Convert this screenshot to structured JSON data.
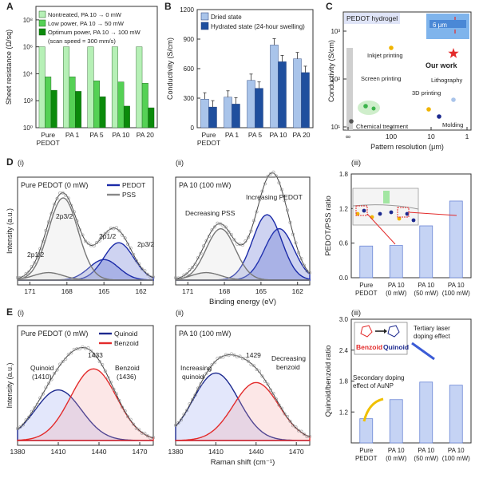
{
  "panel_labels": {
    "A": "A",
    "B": "B",
    "C": "C",
    "D": "D",
    "E": "E",
    "di": "(i)",
    "dii": "(ii)",
    "diii": "(iii)",
    "ei": "(i)",
    "eii": "(ii)",
    "eiii": "(iii)"
  },
  "colors": {
    "light_green": "#b6f0b6",
    "mid_green": "#55d155",
    "dark_green": "#0b8a0b",
    "light_blue": "#a9c4ea",
    "dark_blue": "#1f4f9e",
    "navy": "#1d2a8f",
    "red": "#e32b2b",
    "gray": "#8a8a8a",
    "bar_blue": "#c5d3f4"
  },
  "chart_data": [
    {
      "id": "A",
      "type": "bar",
      "title": "",
      "ylabel": "Sheet resistance (Ω/sq)",
      "yscale": "log",
      "ylim": [
        1,
        1000000000
      ],
      "yticks": [
        "10⁰",
        "10²",
        "10⁴",
        "10⁶",
        "10⁸"
      ],
      "categories": [
        "Pure PEDOT",
        "PA 1",
        "PA 5",
        "PA 10",
        "PA 20"
      ],
      "series": [
        {
          "name": "Nontreated, PA 10 → 0 mW",
          "values": [
            1000000,
            1000000,
            1000000,
            1000000,
            1000000
          ]
        },
        {
          "name": "Low power, PA 10 → 50 mW",
          "values": [
            6000,
            6000,
            3000,
            2500,
            2000
          ]
        },
        {
          "name": "Optimum power, PA 10 → 100 mW",
          "values": [
            600,
            500,
            200,
            40,
            30
          ]
        }
      ],
      "note": "(scan speed = 300 mm/s)",
      "legend": "top"
    },
    {
      "id": "B",
      "type": "bar",
      "title": "",
      "ylabel": "Conductivity (S/cm)",
      "ylim": [
        0,
        1200
      ],
      "yticks": [
        "0",
        "300",
        "600",
        "900",
        "1200"
      ],
      "categories": [
        "Pure PEDOT",
        "PA 1",
        "PA 5",
        "PA 10",
        "PA 20"
      ],
      "series": [
        {
          "name": "Dried state",
          "values": [
            290,
            310,
            480,
            840,
            700
          ]
        },
        {
          "name": "Hydrated state (24-hour swelling)",
          "values": [
            210,
            240,
            400,
            670,
            560
          ]
        }
      ],
      "legend": "top"
    },
    {
      "id": "C",
      "type": "scatter",
      "title": "PEDOT hydrogel",
      "xlabel": "Pattern resolution (μm)",
      "ylabel": "Conductivity (S/cm)",
      "xscale": "log reversed",
      "yscale": "log",
      "xticks": [
        "∞",
        "100",
        "10",
        "1"
      ],
      "yticks": [
        "10¹",
        "10²",
        "10³"
      ],
      "points": [
        {
          "label": "Inkjet printing",
          "x": 40,
          "y": 900
        },
        {
          "label": "Screen printing",
          "x": 300,
          "y": 50
        },
        {
          "label": "3D printing",
          "x": 30,
          "y": 40
        },
        {
          "label": "Lithography",
          "x": 6,
          "y": 50
        },
        {
          "label": "Molding",
          "x": 10,
          "y": 25
        },
        {
          "label": "Chemical treatment",
          "x": 999,
          "y": 20
        },
        {
          "label": "Our work",
          "x": 6,
          "y": 800
        }
      ],
      "inset_label": "6 μm"
    },
    {
      "id": "Di",
      "type": "line",
      "title": "Pure PEDOT (0 mW)",
      "xlabel": "",
      "ylabel": "Intensity (a.u.)",
      "xlim": [
        172,
        161
      ],
      "xticks": [
        "171",
        "168",
        "165",
        "162"
      ],
      "legend": [
        "PEDOT",
        "PSS"
      ],
      "annotations": [
        "2p1/2",
        "2p3/2",
        "2p1/2",
        "2p3/2"
      ],
      "peaks": [
        {
          "name": "PEDOT 2p3/2",
          "center": 163.8,
          "height": 0.4
        },
        {
          "name": "PEDOT 2p1/2",
          "center": 165.0,
          "height": 0.22
        },
        {
          "name": "PSS 2p3/2",
          "center": 168.3,
          "height": 0.88
        },
        {
          "name": "PSS 2p1/2",
          "center": 169.5,
          "height": 0.08
        }
      ]
    },
    {
      "id": "Dii",
      "type": "line",
      "title": "PA 10 (100 mW)",
      "xlabel": "Binding energy (eV)",
      "xlim": [
        172,
        161
      ],
      "xticks": [
        "171",
        "168",
        "165",
        "162"
      ],
      "annotations": [
        "Decreasing PSS",
        "Increasing PEDOT"
      ],
      "peaks": [
        {
          "name": "PEDOT 2p3/2",
          "center": 163.5,
          "height": 0.55
        },
        {
          "name": "PEDOT 2p1/2",
          "center": 164.5,
          "height": 0.7
        },
        {
          "name": "PSS 2p3/2",
          "center": 168.3,
          "height": 0.55
        },
        {
          "name": "PSS 2p1/2",
          "center": 169.5,
          "height": 0.08
        }
      ]
    },
    {
      "id": "Diii",
      "type": "bar",
      "title": "",
      "ylabel": "PEDOT/PSS ratio",
      "ylim": [
        0,
        1.8
      ],
      "yticks": [
        "0.0",
        "0.6",
        "1.2",
        "1.8"
      ],
      "categories": [
        "Pure PEDOT",
        "PA 10 (0 mW)",
        "PA 10 (50 mW)",
        "PA 10 (100 mW)"
      ],
      "values": [
        0.55,
        0.56,
        0.9,
        1.33
      ]
    },
    {
      "id": "Ei",
      "type": "line",
      "title": "Pure PEDOT (0 mW)",
      "xlabel": "",
      "ylabel": "Intensity (a.u.)",
      "xlim": [
        1380,
        1480
      ],
      "xticks": [
        "1380",
        "1410",
        "1440",
        "1470"
      ],
      "legend": [
        "Quinoid",
        "Benzoid"
      ],
      "annotations": [
        "Quinoid (1410)",
        "1433",
        "Benzoid (1436)"
      ],
      "peaks": [
        {
          "name": "Quinoid",
          "center": 1410,
          "height": 0.48
        },
        {
          "name": "Benzoid",
          "center": 1436,
          "height": 0.68
        }
      ]
    },
    {
      "id": "Eii",
      "type": "line",
      "title": "PA 10 (100 mW)",
      "xlabel": "Raman shift (cm⁻¹)",
      "xlim": [
        1380,
        1480
      ],
      "xticks": [
        "1380",
        "1410",
        "1440",
        "1470"
      ],
      "annotations": [
        "Increasing quinoid",
        "1429",
        "Decreasing benzoid"
      ],
      "peaks": [
        {
          "name": "Quinoid",
          "center": 1410,
          "height": 0.64
        },
        {
          "name": "Benzoid",
          "center": 1440,
          "height": 0.55
        }
      ]
    },
    {
      "id": "Eiii",
      "type": "bar",
      "title": "",
      "ylabel": "Quinoid/benzoid ratio",
      "ylim": [
        0.6,
        3.0
      ],
      "yticks": [
        "1.2",
        "1.8",
        "2.4",
        "3.0"
      ],
      "categories": [
        "Pure PEDOT",
        "PA 10 (0 mW)",
        "PA 10 (50 mW)",
        "PA 10 (100 mW)"
      ],
      "values": [
        1.07,
        1.44,
        1.78,
        1.72
      ],
      "annotations": [
        "Secondary doping effect of AuNP",
        "Tertiary laser doping effect",
        "Benzoid",
        "Quinoid"
      ]
    }
  ],
  "text": {
    "c_our_work": "Our work",
    "c_inset": "6 μm",
    "d_inset_note": "",
    "ei_title": "Pure PEDOT (0 mW)"
  }
}
